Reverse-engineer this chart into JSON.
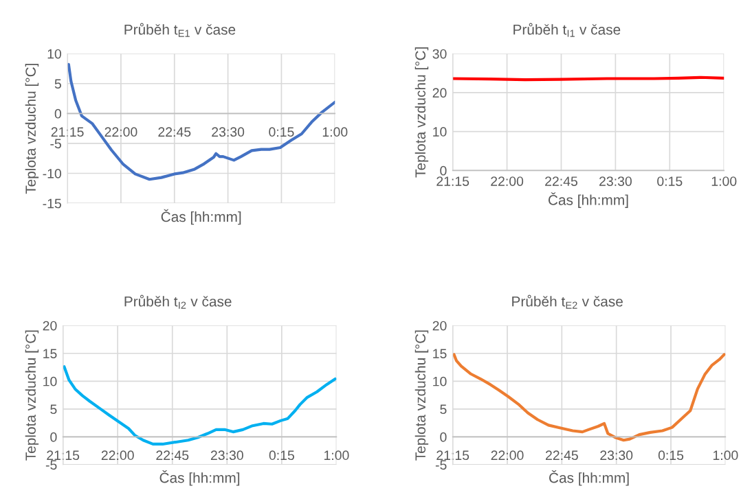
{
  "chart_data": [
    {
      "type": "line",
      "title": "Průběh t$_{E1}$ v čase",
      "xlabel": "Čas [hh:mm]",
      "ylabel": "Teplota vzduchu [°C]",
      "xlim": [
        "2000-01-01T21:15",
        "2000-01-02T01:00"
      ],
      "xticks": [
        {
          "value": "2000-01-01T21:15",
          "label": "21:15"
        },
        {
          "value": "2000-01-01T22:00",
          "label": "22:00"
        },
        {
          "value": "2000-01-01T22:45",
          "label": "22:45"
        },
        {
          "value": "2000-01-01T23:30",
          "label": "23:30"
        },
        {
          "value": "2000-01-02T00:15",
          "label": "0:15"
        },
        {
          "value": "2000-01-02T01:00",
          "label": "1:00"
        }
      ],
      "ylim": [
        -15,
        10
      ],
      "yticks": [
        -15,
        -10,
        -5,
        0,
        5,
        10
      ],
      "grid": true,
      "marker": "none",
      "line_style": "solid",
      "series": [
        {
          "color": "#4472c4",
          "x": [
            "2000-01-01T21:16",
            "2000-01-01T21:18",
            "2000-01-01T21:22",
            "2000-01-01T21:27",
            "2000-01-01T21:36",
            "2000-01-01T21:44",
            "2000-01-01T21:52",
            "2000-01-01T22:02",
            "2000-01-01T22:12",
            "2000-01-01T22:24",
            "2000-01-01T22:34",
            "2000-01-01T22:45",
            "2000-01-01T22:52",
            "2000-01-01T23:02",
            "2000-01-01T23:10",
            "2000-01-01T23:18",
            "2000-01-01T23:20",
            "2000-01-01T23:23",
            "2000-01-01T23:26",
            "2000-01-01T23:35",
            "2000-01-01T23:41",
            "2000-01-01T23:50",
            "2000-01-01T23:58",
            "2000-01-02T00:05",
            "2000-01-02T00:14",
            "2000-01-02T00:23",
            "2000-01-02T00:32",
            "2000-01-02T00:41",
            "2000-01-02T00:49",
            "2000-01-02T01:00"
          ],
          "values": [
            8.2,
            5.4,
            2.2,
            -0.4,
            -1.7,
            -3.9,
            -6.1,
            -8.5,
            -10.1,
            -11.0,
            -10.7,
            -10.1,
            -9.9,
            -9.3,
            -8.4,
            -7.3,
            -6.7,
            -7.2,
            -7.2,
            -7.8,
            -7.2,
            -6.2,
            -6.0,
            -6.0,
            -5.7,
            -4.5,
            -3.4,
            -1.3,
            0.2,
            1.9
          ]
        }
      ]
    },
    {
      "type": "line",
      "title": "Průběh t$_{I1}$ v čase",
      "xlabel": "Čas [hh:mm]",
      "ylabel": "Teplota vzduchu [°C]",
      "xlim": [
        "2000-01-01T21:15",
        "2000-01-02T01:00"
      ],
      "xticks": [
        {
          "value": "2000-01-01T21:15",
          "label": "21:15"
        },
        {
          "value": "2000-01-01T22:00",
          "label": "22:00"
        },
        {
          "value": "2000-01-01T22:45",
          "label": "22:45"
        },
        {
          "value": "2000-01-01T23:30",
          "label": "23:30"
        },
        {
          "value": "2000-01-02T00:15",
          "label": "0:15"
        },
        {
          "value": "2000-01-02T01:00",
          "label": "1:00"
        }
      ],
      "ylim": [
        0,
        30
      ],
      "yticks": [
        0,
        10,
        20,
        30
      ],
      "grid": true,
      "marker": "none",
      "line_style": "solid",
      "series": [
        {
          "color": "#ff0000",
          "x": [
            "2000-01-01T21:15",
            "2000-01-01T21:46",
            "2000-01-01T22:15",
            "2000-01-01T22:44",
            "2000-01-01T23:23",
            "2000-01-02T00:02",
            "2000-01-02T00:22",
            "2000-01-02T00:41",
            "2000-01-02T01:00"
          ],
          "values": [
            23.6,
            23.5,
            23.3,
            23.4,
            23.6,
            23.6,
            23.7,
            23.9,
            23.7
          ]
        }
      ]
    },
    {
      "type": "line",
      "title": "Průběh t$_{I2}$ v čase",
      "xlabel": "Čas [hh:mm]",
      "ylabel": "Teplota vzduchu [°C]",
      "xlim": [
        "2000-01-01T21:15",
        "2000-01-02T01:00"
      ],
      "xticks": [
        {
          "value": "2000-01-01T21:15",
          "label": "21:15"
        },
        {
          "value": "2000-01-01T22:00",
          "label": "22:00"
        },
        {
          "value": "2000-01-01T22:45",
          "label": "22:45"
        },
        {
          "value": "2000-01-01T23:30",
          "label": "23:30"
        },
        {
          "value": "2000-01-02T00:15",
          "label": "0:15"
        },
        {
          "value": "2000-01-02T01:00",
          "label": "1:00"
        }
      ],
      "ylim": [
        -5,
        20
      ],
      "yticks": [
        -5,
        0,
        5,
        10,
        15,
        20
      ],
      "grid": true,
      "marker": "none",
      "line_style": "solid",
      "series": [
        {
          "color": "#00b0f0",
          "x": [
            "2000-01-01T21:16",
            "2000-01-01T21:20",
            "2000-01-01T21:25",
            "2000-01-01T21:31",
            "2000-01-01T21:37",
            "2000-01-01T21:46",
            "2000-01-01T21:53",
            "2000-01-01T22:01",
            "2000-01-01T22:09",
            "2000-01-01T22:14",
            "2000-01-01T22:21",
            "2000-01-01T22:29",
            "2000-01-01T22:37",
            "2000-01-01T22:49",
            "2000-01-01T22:58",
            "2000-01-01T23:06",
            "2000-01-01T23:14",
            "2000-01-01T23:21",
            "2000-01-01T23:28",
            "2000-01-01T23:35",
            "2000-01-01T23:43",
            "2000-01-01T23:51",
            "2000-01-02T00:00",
            "2000-01-02T00:07",
            "2000-01-02T00:14",
            "2000-01-02T00:20",
            "2000-01-02T00:26",
            "2000-01-02T00:30",
            "2000-01-02T00:36",
            "2000-01-02T00:44",
            "2000-01-02T00:52",
            "2000-01-02T00:59"
          ],
          "values": [
            12.6,
            10.2,
            8.6,
            7.4,
            6.4,
            5.0,
            3.9,
            2.7,
            1.5,
            0.3,
            -0.6,
            -1.3,
            -1.3,
            -0.9,
            -0.6,
            -0.1,
            0.6,
            1.3,
            1.3,
            0.9,
            1.3,
            2.0,
            2.4,
            2.3,
            2.9,
            3.3,
            4.7,
            5.8,
            7.1,
            8.1,
            9.4,
            10.4
          ]
        }
      ]
    },
    {
      "type": "line",
      "title": "Průběh t$_{E2}$ v čase",
      "xlabel": "Čas [hh:mm]",
      "ylabel": "Teplota vzduchu [°C]",
      "xlim": [
        "2000-01-01T21:15",
        "2000-01-02T01:00"
      ],
      "xticks": [
        {
          "value": "2000-01-01T21:15",
          "label": "21:15"
        },
        {
          "value": "2000-01-01T22:00",
          "label": "22:00"
        },
        {
          "value": "2000-01-01T22:45",
          "label": "22:45"
        },
        {
          "value": "2000-01-01T23:30",
          "label": "23:30"
        },
        {
          "value": "2000-01-02T00:15",
          "label": "0:15"
        },
        {
          "value": "2000-01-02T01:00",
          "label": "1:00"
        }
      ],
      "ylim": [
        -5,
        20
      ],
      "yticks": [
        -5,
        0,
        5,
        10,
        15,
        20
      ],
      "grid": true,
      "marker": "none",
      "line_style": "solid",
      "series": [
        {
          "color": "#ed7d31",
          "x": [
            "2000-01-01T21:16",
            "2000-01-01T21:18",
            "2000-01-01T21:22",
            "2000-01-01T21:30",
            "2000-01-01T21:38",
            "2000-01-01T21:46",
            "2000-01-01T21:53",
            "2000-01-01T22:01",
            "2000-01-01T22:09",
            "2000-01-01T22:17",
            "2000-01-01T22:25",
            "2000-01-01T22:34",
            "2000-01-01T22:44",
            "2000-01-01T22:54",
            "2000-01-01T23:02",
            "2000-01-01T23:07",
            "2000-01-01T23:15",
            "2000-01-01T23:20",
            "2000-01-01T23:23",
            "2000-01-01T23:29",
            "2000-01-01T23:36",
            "2000-01-01T23:41",
            "2000-01-01T23:49",
            "2000-01-01T23:58",
            "2000-01-02T00:08",
            "2000-01-02T00:16",
            "2000-01-02T00:23",
            "2000-01-02T00:31",
            "2000-01-02T00:37",
            "2000-01-02T00:43",
            "2000-01-02T00:49",
            "2000-01-02T00:55",
            "2000-01-02T00:59"
          ],
          "values": [
            14.8,
            13.7,
            12.7,
            11.3,
            10.4,
            9.4,
            8.4,
            7.2,
            5.9,
            4.3,
            3.1,
            2.1,
            1.6,
            1.1,
            0.9,
            1.3,
            1.9,
            2.4,
            0.6,
            -0.1,
            -0.6,
            -0.4,
            0.4,
            0.8,
            1.1,
            1.7,
            3.1,
            4.7,
            8.6,
            11.2,
            12.9,
            13.9,
            14.8
          ]
        }
      ]
    }
  ]
}
